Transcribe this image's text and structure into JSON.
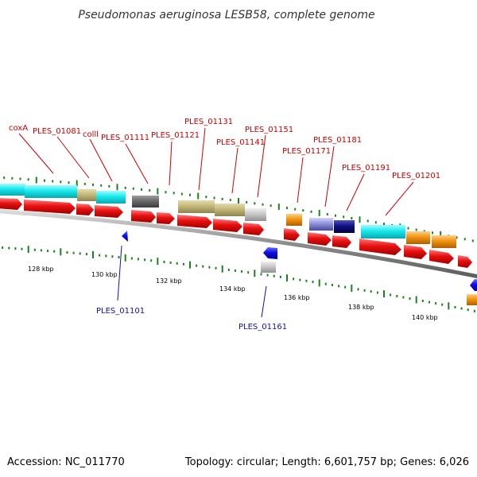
{
  "title": "Pseudomonas aeruginosa LESB58, complete genome",
  "footer": {
    "accession": "Accession: NC_011770",
    "summary": "Topology: circular; Length: 6,601,757 bp; Genes: 6,026"
  },
  "colors": {
    "forward_cds": "#e81010",
    "reverse_cds": "#1010e0",
    "label_red": "#cc0000",
    "label_blue": "#1111aa",
    "backbone": "#8c8c8c",
    "tick": "#208020",
    "cyan": "#18e8ec",
    "khaki": "#c4b878",
    "dark_gray": "#6a6a6a",
    "light_gray": "#c8c8c8",
    "orange": "#f29410",
    "slate": "#8a8ad8",
    "navy": "#101080"
  },
  "ticks": [
    {
      "label": "128 kbp"
    },
    {
      "label": "130 kbp"
    },
    {
      "label": "132 kbp"
    },
    {
      "label": "134 kbp"
    },
    {
      "label": "136 kbp"
    },
    {
      "label": "138 kbp"
    },
    {
      "label": "140 kbp"
    }
  ],
  "gene_labels_top": [
    "coxA",
    "PLES_01081",
    "colll",
    "PLES_01111",
    "PLES_01121",
    "PLES_01131",
    "PLES_01141",
    "PLES_01151",
    "PLES_01171",
    "PLES_01181",
    "PLES_01191",
    "PLES_01201"
  ],
  "gene_labels_bottom": [
    "PLES_01101",
    "PLES_01161"
  ]
}
